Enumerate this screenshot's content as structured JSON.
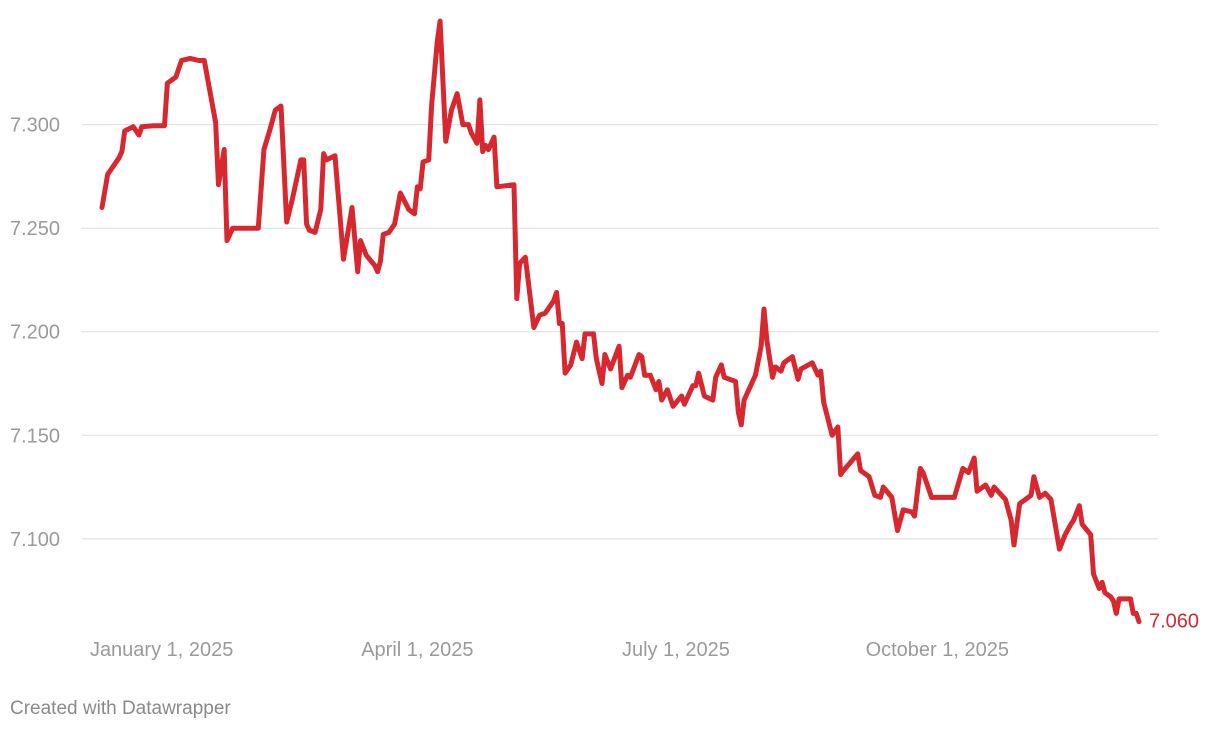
{
  "chart_data": {
    "type": "line",
    "x": [
      "2024-12-11",
      "2024-12-13",
      "2024-12-17",
      "2024-12-18",
      "2024-12-19",
      "2024-12-22",
      "2024-12-24",
      "2024-12-25",
      "2024-12-29",
      "2025-01-02",
      "2025-01-03",
      "2025-01-06",
      "2025-01-08",
      "2025-01-11",
      "2025-01-14",
      "2025-01-16",
      "2025-01-20",
      "2025-01-21",
      "2025-01-23",
      "2025-01-24",
      "2025-01-26",
      "2025-02-04",
      "2025-02-06",
      "2025-02-08",
      "2025-02-10",
      "2025-02-12",
      "2025-02-14",
      "2025-02-16",
      "2025-02-19",
      "2025-02-20",
      "2025-02-21",
      "2025-02-22",
      "2025-02-24",
      "2025-02-26",
      "2025-02-27",
      "2025-02-28",
      "2025-03-03",
      "2025-03-05",
      "2025-03-06",
      "2025-03-09",
      "2025-03-11",
      "2025-03-12",
      "2025-03-14",
      "2025-03-17",
      "2025-03-18",
      "2025-03-19",
      "2025-03-20",
      "2025-03-22",
      "2025-03-24",
      "2025-03-26",
      "2025-03-29",
      "2025-03-31",
      "2025-04-01",
      "2025-04-02",
      "2025-04-03",
      "2025-04-05",
      "2025-04-06",
      "2025-04-08",
      "2025-04-09",
      "2025-04-11",
      "2025-04-13",
      "2025-04-15",
      "2025-04-17",
      "2025-04-19",
      "2025-04-20",
      "2025-04-22",
      "2025-04-23",
      "2025-04-24",
      "2025-04-25",
      "2025-04-26",
      "2025-04-28",
      "2025-04-29",
      "2025-05-05",
      "2025-05-06",
      "2025-05-07",
      "2025-05-09",
      "2025-05-12",
      "2025-05-14",
      "2025-05-16",
      "2025-05-19",
      "2025-05-20",
      "2025-05-21",
      "2025-05-22",
      "2025-05-23",
      "2025-05-25",
      "2025-05-27",
      "2025-05-29",
      "2025-05-30",
      "2025-06-02",
      "2025-06-03",
      "2025-06-05",
      "2025-06-06",
      "2025-06-08",
      "2025-06-11",
      "2025-06-12",
      "2025-06-14",
      "2025-06-15",
      "2025-06-18",
      "2025-06-19",
      "2025-06-20",
      "2025-06-22",
      "2025-06-24",
      "2025-06-25",
      "2025-06-26",
      "2025-06-28",
      "2025-06-30",
      "2025-07-03",
      "2025-07-04",
      "2025-07-07",
      "2025-07-08",
      "2025-07-09",
      "2025-07-11",
      "2025-07-14",
      "2025-07-15",
      "2025-07-17",
      "2025-07-18",
      "2025-07-22",
      "2025-07-23",
      "2025-07-24",
      "2025-07-25",
      "2025-07-28",
      "2025-07-29",
      "2025-07-31",
      "2025-08-01",
      "2025-08-02",
      "2025-08-04",
      "2025-08-05",
      "2025-08-07",
      "2025-08-08",
      "2025-08-11",
      "2025-08-13",
      "2025-08-14",
      "2025-08-18",
      "2025-08-20",
      "2025-08-21",
      "2025-08-22",
      "2025-08-25",
      "2025-08-27",
      "2025-08-28",
      "2025-08-29",
      "2025-09-03",
      "2025-09-04",
      "2025-09-07",
      "2025-09-09",
      "2025-09-11",
      "2025-09-12",
      "2025-09-15",
      "2025-09-17",
      "2025-09-19",
      "2025-09-22",
      "2025-09-23",
      "2025-09-25",
      "2025-09-26",
      "2025-09-29",
      "2025-10-07",
      "2025-10-10",
      "2025-10-12",
      "2025-10-14",
      "2025-10-15",
      "2025-10-18",
      "2025-10-20",
      "2025-10-21",
      "2025-10-23",
      "2025-10-25",
      "2025-10-27",
      "2025-10-28",
      "2025-10-30",
      "2025-11-01",
      "2025-11-03",
      "2025-11-04",
      "2025-11-06",
      "2025-11-08",
      "2025-11-10",
      "2025-11-11",
      "2025-11-13",
      "2025-11-15",
      "2025-11-17",
      "2025-11-18",
      "2025-11-20",
      "2025-11-21",
      "2025-11-24",
      "2025-11-25",
      "2025-11-27",
      "2025-11-28",
      "2025-11-29",
      "2025-12-01",
      "2025-12-02",
      "2025-12-03",
      "2025-12-04",
      "2025-12-08",
      "2025-12-09",
      "2025-12-10",
      "2025-12-11"
    ],
    "values": [
      7.26,
      7.276,
      7.284,
      7.287,
      7.297,
      7.299,
      7.295,
      7.299,
      7.2995,
      7.2995,
      7.32,
      7.323,
      7.331,
      7.332,
      7.331,
      7.331,
      7.301,
      7.271,
      7.288,
      7.244,
      7.25,
      7.25,
      7.288,
      7.297,
      7.307,
      7.309,
      7.253,
      7.264,
      7.283,
      7.283,
      7.252,
      7.249,
      7.248,
      7.259,
      7.286,
      7.283,
      7.285,
      7.252,
      7.235,
      7.26,
      7.229,
      7.244,
      7.237,
      7.232,
      7.229,
      7.234,
      7.247,
      7.248,
      7.252,
      7.267,
      7.259,
      7.257,
      7.27,
      7.269,
      7.282,
      7.283,
      7.309,
      7.34,
      7.35,
      7.292,
      7.307,
      7.315,
      7.3,
      7.3,
      7.296,
      7.291,
      7.312,
      7.287,
      7.29,
      7.288,
      7.294,
      7.27,
      7.271,
      7.216,
      7.233,
      7.236,
      7.202,
      7.208,
      7.209,
      7.215,
      7.219,
      7.204,
      7.204,
      7.18,
      7.184,
      7.195,
      7.187,
      7.199,
      7.199,
      7.187,
      7.175,
      7.189,
      7.182,
      7.193,
      7.173,
      7.179,
      7.178,
      7.189,
      7.188,
      7.179,
      7.179,
      7.172,
      7.176,
      7.167,
      7.172,
      7.164,
      7.169,
      7.165,
      7.174,
      7.174,
      7.18,
      7.169,
      7.167,
      7.178,
      7.184,
      7.178,
      7.176,
      7.161,
      7.155,
      7.167,
      7.176,
      7.179,
      7.193,
      7.211,
      7.196,
      7.178,
      7.183,
      7.181,
      7.185,
      7.188,
      7.177,
      7.182,
      7.185,
      7.179,
      7.181,
      7.166,
      7.15,
      7.154,
      7.131,
      7.133,
      7.141,
      7.133,
      7.13,
      7.121,
      7.12,
      7.125,
      7.12,
      7.104,
      7.114,
      7.113,
      7.111,
      7.134,
      7.132,
      7.12,
      7.12,
      7.134,
      7.132,
      7.139,
      7.123,
      7.126,
      7.121,
      7.125,
      7.122,
      7.119,
      7.109,
      7.097,
      7.117,
      7.119,
      7.121,
      7.13,
      7.12,
      7.122,
      7.119,
      7.111,
      7.095,
      7.102,
      7.107,
      7.109,
      7.116,
      7.107,
      7.102,
      7.083,
      7.076,
      7.079,
      7.074,
      7.072,
      7.07,
      7.064,
      7.071,
      7.071,
      7.064,
      7.064,
      7.06
    ],
    "color": "#d7282f",
    "end_label": "7.060",
    "xlim": [
      "2024-12-11",
      "2025-12-11"
    ],
    "xticks": [
      {
        "value": "2025-01-01",
        "label": "January 1, 2025"
      },
      {
        "value": "2025-04-01",
        "label": "April 1, 2025"
      },
      {
        "value": "2025-07-01",
        "label": "July 1, 2025"
      },
      {
        "value": "2025-10-01",
        "label": "October 1, 2025"
      }
    ],
    "ylim": [
      7.055,
      7.352
    ],
    "yticks": [
      {
        "value": 7.1,
        "label": "7.100"
      },
      {
        "value": 7.15,
        "label": "7.150"
      },
      {
        "value": 7.2,
        "label": "7.200"
      },
      {
        "value": 7.25,
        "label": "7.250"
      },
      {
        "value": 7.3,
        "label": "7.300"
      }
    ],
    "grid": true,
    "credit": "Created with Datawrapper"
  }
}
